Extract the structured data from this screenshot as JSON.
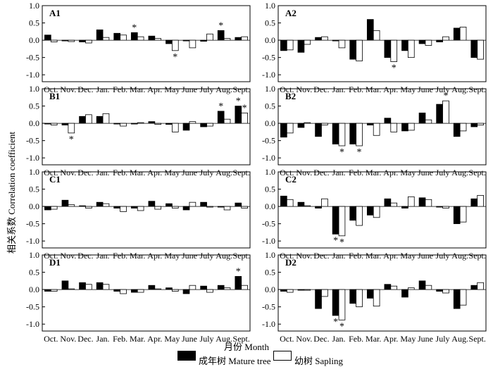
{
  "chart_data": [
    {
      "type": "bar",
      "panel": "A1",
      "categories": [
        "Oct.",
        "Nov.",
        "Dec.",
        "Jan.",
        "Feb.",
        "Mar.",
        "Apr.",
        "May",
        "June",
        "July",
        "Aug.",
        "Sept."
      ],
      "series": [
        {
          "name": "成年树 Mature tree",
          "values": [
            0.15,
            -0.02,
            -0.05,
            0.3,
            0.2,
            0.22,
            0.12,
            -0.1,
            -0.02,
            -0.03,
            0.28,
            0.08
          ]
        },
        {
          "name": "幼树 Sapling",
          "values": [
            -0.05,
            -0.04,
            -0.08,
            0.08,
            0.15,
            0.1,
            0.05,
            -0.3,
            -0.22,
            0.18,
            0.05,
            0.1
          ]
        }
      ],
      "ylim": [
        -1.2,
        1.0
      ],
      "yticks": [
        "1.0",
        "0.5",
        "0.0",
        "-0.5",
        "-1.0"
      ],
      "significance": [
        {
          "month": "Mar.",
          "series": "成年树 Mature tree"
        },
        {
          "month": "May",
          "series": "幼树 Sapling"
        },
        {
          "month": "Aug.",
          "series": "成年树 Mature tree"
        }
      ]
    },
    {
      "type": "bar",
      "panel": "A2",
      "categories": [
        "Oct.",
        "Nov.",
        "Dec.",
        "Jan.",
        "Feb.",
        "Mar.",
        "Apr.",
        "May",
        "June",
        "July",
        "Aug.",
        "Sept."
      ],
      "series": [
        {
          "name": "成年树 Mature tree",
          "values": [
            -0.3,
            -0.35,
            0.08,
            -0.02,
            -0.55,
            0.6,
            -0.5,
            -0.3,
            -0.1,
            -0.05,
            0.35,
            -0.5
          ]
        },
        {
          "name": "幼树 Sapling",
          "values": [
            -0.28,
            -0.12,
            0.1,
            -0.22,
            -0.6,
            0.28,
            -0.62,
            -0.5,
            -0.15,
            0.1,
            0.38,
            -0.55
          ]
        }
      ],
      "ylim": [
        -1.2,
        1.0
      ],
      "yticks": [
        "1.0",
        "0.5",
        "0.0",
        "-0.5",
        "-1.0"
      ],
      "significance": [
        {
          "month": "Apr.",
          "series": "幼树 Sapling"
        }
      ]
    },
    {
      "type": "bar",
      "panel": "B1",
      "categories": [
        "Oct.",
        "Nov.",
        "Dec.",
        "Jan.",
        "Feb.",
        "Mar.",
        "Apr.",
        "May",
        "June",
        "July",
        "Aug.",
        "Sept."
      ],
      "series": [
        {
          "name": "成年树 Mature tree",
          "values": [
            -0.02,
            -0.05,
            0.2,
            0.2,
            -0.02,
            -0.02,
            0.05,
            -0.03,
            -0.2,
            -0.1,
            0.35,
            0.5
          ]
        },
        {
          "name": "幼树 Sapling",
          "values": [
            -0.05,
            -0.28,
            0.25,
            0.28,
            -0.08,
            0.02,
            -0.03,
            -0.25,
            0.05,
            -0.08,
            0.12,
            0.3
          ]
        }
      ],
      "ylim": [
        -1.2,
        1.0
      ],
      "yticks": [
        "1.0",
        "0.5",
        "0.0",
        "-0.5",
        "-1.0"
      ],
      "significance": [
        {
          "month": "Nov.",
          "series": "幼树 Sapling"
        },
        {
          "month": "Aug.",
          "series": "成年树 Mature tree"
        },
        {
          "month": "Sept.",
          "series": "成年树 Mature tree"
        },
        {
          "month": "Sept.",
          "series": "幼树 Sapling"
        }
      ]
    },
    {
      "type": "bar",
      "panel": "B2",
      "categories": [
        "Oct.",
        "Nov.",
        "Dec.",
        "Jan.",
        "Feb.",
        "Mar.",
        "Apr.",
        "May",
        "June",
        "July",
        "Aug.",
        "Sept."
      ],
      "series": [
        {
          "name": "成年树 Mature tree",
          "values": [
            -0.4,
            -0.12,
            -0.38,
            -0.6,
            -0.6,
            -0.05,
            0.15,
            -0.22,
            0.3,
            0.55,
            -0.38,
            -0.1
          ]
        },
        {
          "name": "幼树 Sapling",
          "values": [
            -0.28,
            0.02,
            -0.05,
            -0.65,
            -0.65,
            -0.35,
            -0.25,
            -0.2,
            0.1,
            0.65,
            -0.22,
            -0.05
          ]
        }
      ],
      "ylim": [
        -1.2,
        1.0
      ],
      "yticks": [
        "1.0",
        "0.5",
        "0.0",
        "-0.5",
        "-1.0"
      ],
      "significance": [
        {
          "month": "Jan.",
          "series": "幼树 Sapling"
        },
        {
          "month": "Feb.",
          "series": "幼树 Sapling"
        },
        {
          "month": "July",
          "series": "幼树 Sapling"
        }
      ]
    },
    {
      "type": "bar",
      "panel": "C1",
      "categories": [
        "Oct.",
        "Nov.",
        "Dec.",
        "Jan.",
        "Feb.",
        "Mar.",
        "Apr.",
        "May",
        "June",
        "July",
        "Aug.",
        "Sept."
      ],
      "series": [
        {
          "name": "成年树 Mature tree",
          "values": [
            -0.1,
            0.18,
            0.02,
            0.12,
            -0.05,
            -0.05,
            0.15,
            0.08,
            -0.1,
            0.12,
            -0.02,
            0.1
          ]
        },
        {
          "name": "幼树 Sapling",
          "values": [
            -0.08,
            0.05,
            -0.05,
            0.08,
            -0.15,
            -0.12,
            -0.08,
            -0.05,
            0.12,
            -0.02,
            -0.1,
            -0.05
          ]
        }
      ],
      "ylim": [
        -1.2,
        1.0
      ],
      "yticks": [
        "1.0",
        "0.5",
        "0.0",
        "-0.5",
        "-1.0"
      ],
      "significance": []
    },
    {
      "type": "bar",
      "panel": "C2",
      "categories": [
        "Oct.",
        "Nov.",
        "Dec.",
        "Jan.",
        "Feb.",
        "Mar.",
        "Apr.",
        "May",
        "June",
        "July",
        "Aug.",
        "Sept."
      ],
      "series": [
        {
          "name": "成年树 Mature tree",
          "values": [
            0.3,
            0.12,
            -0.05,
            -0.8,
            -0.4,
            -0.25,
            0.22,
            -0.05,
            0.25,
            -0.02,
            -0.5,
            0.22
          ]
        },
        {
          "name": "幼树 Sapling",
          "values": [
            0.2,
            0.02,
            0.22,
            -0.85,
            -0.55,
            -0.32,
            0.1,
            0.28,
            0.2,
            -0.05,
            -0.45,
            0.32
          ]
        }
      ],
      "ylim": [
        -1.2,
        1.0
      ],
      "yticks": [
        "1.0",
        "0.5",
        "0.0",
        "-0.5",
        "-1.0"
      ],
      "significance": [
        {
          "month": "Jan.",
          "series": "成年树 Mature tree"
        },
        {
          "month": "Jan.",
          "series": "幼树 Sapling"
        }
      ]
    },
    {
      "type": "bar",
      "panel": "D1",
      "categories": [
        "Oct.",
        "Nov.",
        "Dec.",
        "Jan.",
        "Feb.",
        "Mar.",
        "Apr.",
        "May",
        "June",
        "July",
        "Aug.",
        "Sept."
      ],
      "series": [
        {
          "name": "成年树 Mature tree",
          "values": [
            -0.05,
            0.25,
            0.2,
            0.2,
            -0.05,
            -0.08,
            0.12,
            0.05,
            -0.12,
            0.1,
            0.12,
            0.38
          ]
        },
        {
          "name": "幼树 Sapling",
          "values": [
            -0.05,
            0.02,
            0.15,
            0.15,
            -0.12,
            -0.08,
            0.02,
            -0.05,
            0.12,
            -0.08,
            0.05,
            0.12
          ]
        }
      ],
      "ylim": [
        -1.2,
        1.0
      ],
      "yticks": [
        "1.0",
        "0.5",
        "0.0",
        "-0.5",
        "-1.0"
      ],
      "significance": [
        {
          "month": "Sept.",
          "series": "成年树 Mature tree"
        }
      ]
    },
    {
      "type": "bar",
      "panel": "D2",
      "categories": [
        "Oct.",
        "Nov.",
        "Dec.",
        "Jan.",
        "Feb.",
        "Mar.",
        "Apr.",
        "May",
        "June",
        "July",
        "Aug.",
        "Sept."
      ],
      "series": [
        {
          "name": "成年树 Mature tree",
          "values": [
            -0.05,
            -0.02,
            -0.55,
            -0.75,
            -0.4,
            -0.25,
            0.15,
            -0.22,
            0.25,
            -0.05,
            -0.55,
            0.12
          ]
        },
        {
          "name": "幼树 Sapling",
          "values": [
            -0.08,
            -0.02,
            -0.2,
            -0.88,
            -0.5,
            -0.48,
            0.1,
            0.05,
            0.12,
            -0.1,
            -0.45,
            0.2
          ]
        }
      ],
      "ylim": [
        -1.2,
        1.0
      ],
      "yticks": [
        "1.0",
        "0.5",
        "0.0",
        "-0.5",
        "-1.0"
      ],
      "significance": [
        {
          "month": "Jan.",
          "series": "成年树 Mature tree"
        },
        {
          "month": "Jan.",
          "series": "幼树 Sapling"
        }
      ]
    }
  ],
  "shared": {
    "xlabel": "月份 Month",
    "ylabel": "相关系数 Correlation coefficient",
    "legend": {
      "mature": "成年树 Mature tree",
      "sapling": "幼树 Sapling"
    },
    "significance_symbol": "*",
    "colors": {
      "mature": "#000000",
      "sapling": "#ffffff",
      "outline": "#000000"
    }
  }
}
